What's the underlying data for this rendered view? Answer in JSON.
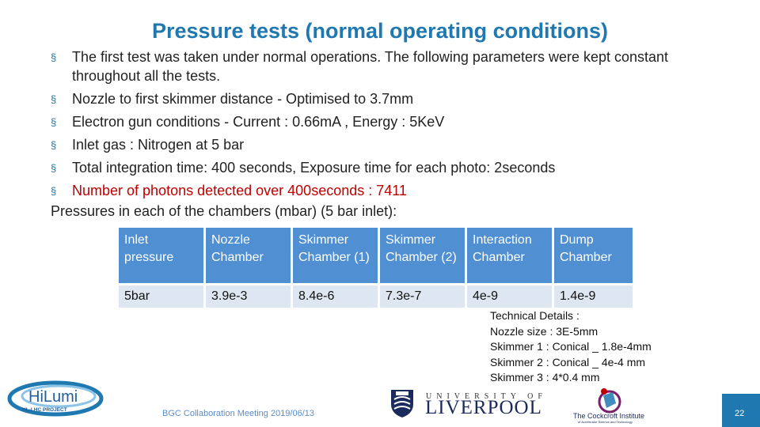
{
  "slide": {
    "title": "Pressure tests (normal operating conditions)",
    "bullets": [
      {
        "text": "The first test was taken under normal operations. The following parameters were kept constant throughout all the tests.",
        "color": "#222222"
      },
      {
        "text": "Nozzle to first skimmer distance - Optimised to 3.7mm",
        "color": "#222222"
      },
      {
        "text": "Electron gun conditions - Current : 0.66mA , Energy : 5KeV",
        "color": "#222222"
      },
      {
        "text": "Inlet gas : Nitrogen at 5 bar",
        "color": "#222222"
      },
      {
        "text": "Total integration time: 400 seconds, Exposure time for each photo: 2seconds",
        "color": "#222222"
      },
      {
        "text": "Number of photons detected over 400seconds :  7411",
        "color": "#c00000"
      }
    ],
    "bullet_marker": "§",
    "plain_line": "Pressures in each of the chambers (mbar) (5 bar inlet):",
    "table": {
      "headers": [
        "Inlet pressure",
        "Nozzle Chamber",
        "Skimmer Chamber (1)",
        "Skimmer Chamber (2)",
        "Interaction Chamber",
        "Dump Chamber"
      ],
      "rows": [
        [
          "5bar",
          "3.9e-3",
          "8.4e-6",
          "7.3e-7",
          "4e-9",
          "1.4e-9"
        ]
      ]
    },
    "technical_details": [
      "Technical Details :",
      "Nozzle size : 3E-5mm",
      "Skimmer 1 : Conical _ 1.8e-4mm",
      "Skimmer 2 : Conical _ 4e-4 mm",
      "Skimmer 3 : 4*0.4 mm"
    ],
    "footer": "BGC Collaboration Meeting  2019/06/13",
    "page_number": "22"
  },
  "logos": {
    "hilumi": {
      "name": "HiLumi",
      "subtitle": "HL-LHC PROJECT"
    },
    "liverpool": {
      "top": "UNIVERSITY OF",
      "name": "LIVERPOOL"
    },
    "cockcroft": {
      "name": "The Cockcroft Institute",
      "subtitle": "of Accelerator Science and Technology"
    }
  },
  "colors": {
    "accent": "#1f78b0",
    "table_header": "#4f8fd2",
    "table_row": "#dde6f1",
    "highlight": "#c00000"
  }
}
